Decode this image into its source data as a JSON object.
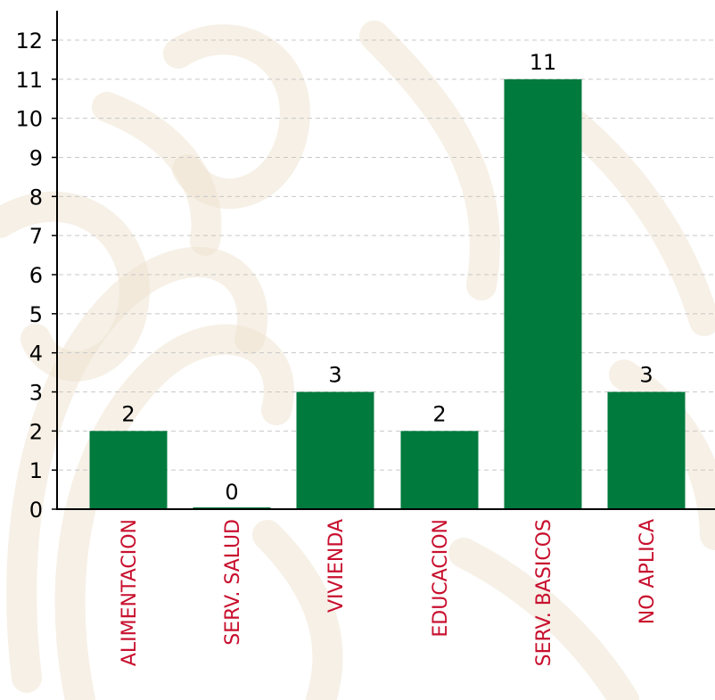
{
  "colors": {
    "bar": "#007a3d",
    "category_label": "#c8102e",
    "axis": "#000000",
    "grid": "#c8c8c8",
    "watermark": "#efe4d2"
  },
  "chart_data": {
    "type": "bar",
    "title": "",
    "xlabel": "",
    "ylabel": "",
    "categories": [
      "ALIMENTACION",
      "SERV. SALUD",
      "VIVIENDA",
      "EDUCACION",
      "SERV. BASICOS",
      "NO APLICA"
    ],
    "values": [
      2,
      0,
      3,
      2,
      11,
      3
    ],
    "data_labels": [
      "2",
      "0",
      "3",
      "2",
      "11",
      "3"
    ],
    "ylim": [
      0,
      12
    ],
    "yticks": [
      "0",
      "1",
      "2",
      "3",
      "4",
      "5",
      "6",
      "7",
      "8",
      "9",
      "10",
      "11",
      "12"
    ],
    "grid": true,
    "grid_style": "dashed horizontal",
    "legend": "none",
    "category_label_orientation": "vertical"
  }
}
